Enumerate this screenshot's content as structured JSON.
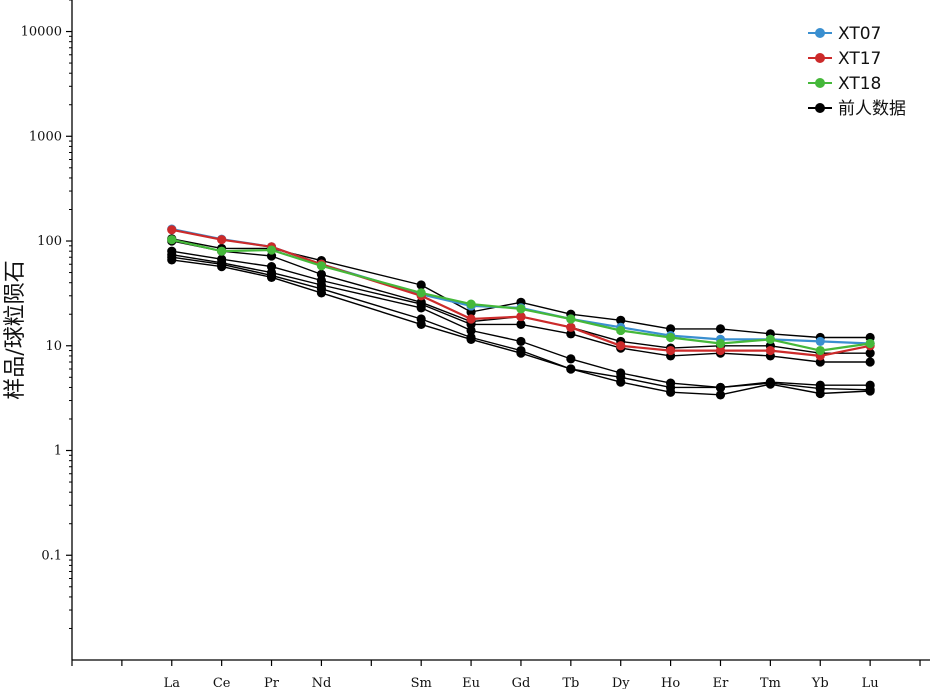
{
  "chart_data": {
    "type": "line",
    "ylabel": "样品/球粒陨石",
    "yscale": "log",
    "ylim": [
      0.01,
      20000
    ],
    "yticks": [
      {
        "value": 10000,
        "label": "10000"
      },
      {
        "value": 1000,
        "label": "1000"
      },
      {
        "value": 100,
        "label": "100"
      },
      {
        "value": 10,
        "label": "10"
      },
      {
        "value": 1,
        "label": "1"
      },
      {
        "value": 0.1,
        "label": "0.1"
      }
    ],
    "categories": [
      "La",
      "Ce",
      "Pr",
      "Nd",
      "Sm",
      "Eu",
      "Gd",
      "Tb",
      "Dy",
      "Ho",
      "Er",
      "Tm",
      "Yb",
      "Lu"
    ],
    "category_positions": [
      1,
      2,
      3,
      4,
      6,
      7,
      8,
      9,
      10,
      11,
      12,
      13,
      14,
      15
    ],
    "xlim": [
      -1,
      16.2
    ],
    "legend_position": "top-right",
    "series": [
      {
        "name": "XT07",
        "color": "#3a8fd0",
        "values": [
          130,
          104,
          88,
          60,
          31,
          24,
          23,
          18,
          15,
          12.5,
          11.5,
          11.5,
          11,
          10.5
        ]
      },
      {
        "name": "XT17",
        "color": "#cc2a2a",
        "values": [
          128,
          103,
          88,
          60,
          30,
          18,
          19,
          15,
          10,
          9,
          9,
          9,
          8,
          10
        ]
      },
      {
        "name": "XT18",
        "color": "#45b83a",
        "values": [
          103,
          80,
          82,
          58,
          32,
          25,
          22.5,
          18,
          14,
          12,
          10.5,
          11.5,
          9,
          10.5
        ]
      }
    ],
    "reference_series_name": "前人数据",
    "reference_color": "#000000",
    "reference_lines": [
      [
        105,
        85,
        85,
        65,
        38,
        21,
        26,
        20,
        17.5,
        14.5,
        14.5,
        13,
        12,
        12
      ],
      [
        100,
        80,
        72,
        48,
        26,
        17,
        19,
        15,
        11,
        9.5,
        10,
        10,
        8.5,
        8.5
      ],
      [
        80,
        67,
        57,
        42,
        25,
        16,
        16,
        13,
        9.5,
        8,
        8.5,
        8,
        7,
        7
      ],
      [
        74,
        62,
        50,
        38,
        23,
        14,
        11,
        7.5,
        5.5,
        4.4,
        4,
        4.5,
        4.2,
        4.2
      ],
      [
        70,
        60,
        47,
        35,
        18,
        12,
        9,
        6,
        5,
        4,
        4,
        4.4,
        3.9,
        3.8
      ],
      [
        66,
        57,
        45,
        32,
        16,
        11.5,
        8.5,
        6,
        4.5,
        3.6,
        3.4,
        4.3,
        3.5,
        3.7
      ]
    ]
  }
}
